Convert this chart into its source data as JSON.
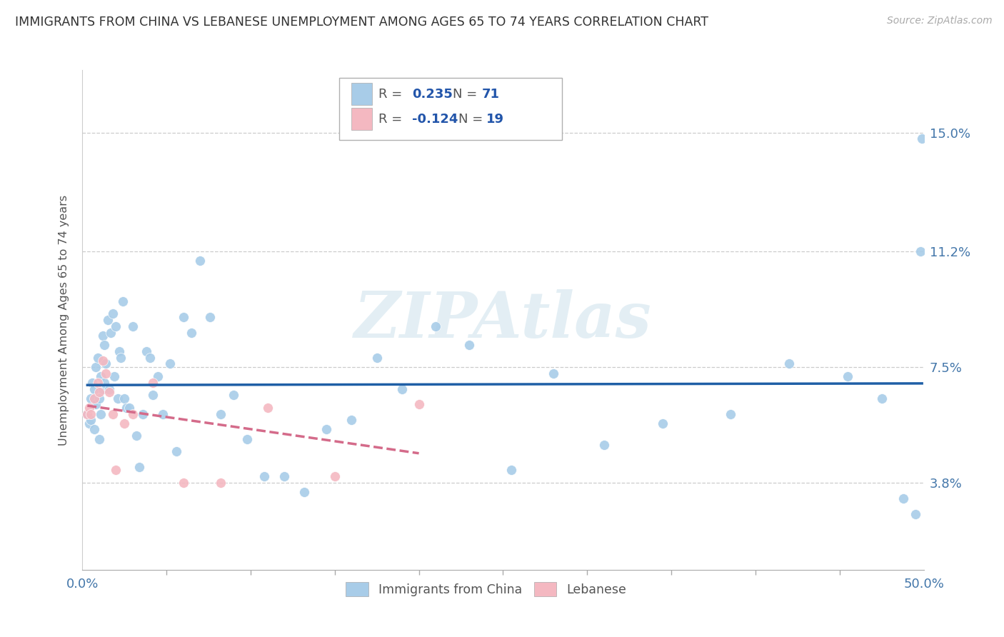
{
  "title": "IMMIGRANTS FROM CHINA VS LEBANESE UNEMPLOYMENT AMONG AGES 65 TO 74 YEARS CORRELATION CHART",
  "source": "Source: ZipAtlas.com",
  "ylabel": "Unemployment Among Ages 65 to 74 years",
  "xlim": [
    0.0,
    0.5
  ],
  "ylim": [
    0.01,
    0.17
  ],
  "xtick_positions": [
    0.0,
    0.5
  ],
  "xtick_labels": [
    "0.0%",
    "50.0%"
  ],
  "ytick_values": [
    0.038,
    0.075,
    0.112,
    0.15
  ],
  "ytick_labels": [
    "3.8%",
    "7.5%",
    "11.2%",
    "15.0%"
  ],
  "r_china": "0.235",
  "n_china": "71",
  "r_lebanese": "-0.124",
  "n_lebanese": "19",
  "legend_label_china": "Immigrants from China",
  "legend_label_lebanese": "Lebanese",
  "color_china": "#a8cce8",
  "color_lebanese": "#f4b8c1",
  "trendline_color_china": "#1f5fa6",
  "trendline_color_lebanese": "#d46b8a",
  "watermark": "ZIPAtlas",
  "china_x": [
    0.003,
    0.004,
    0.005,
    0.005,
    0.006,
    0.007,
    0.007,
    0.008,
    0.008,
    0.009,
    0.01,
    0.01,
    0.011,
    0.011,
    0.012,
    0.012,
    0.013,
    0.013,
    0.014,
    0.015,
    0.016,
    0.017,
    0.018,
    0.019,
    0.02,
    0.021,
    0.022,
    0.023,
    0.024,
    0.025,
    0.026,
    0.028,
    0.03,
    0.032,
    0.034,
    0.036,
    0.038,
    0.04,
    0.042,
    0.045,
    0.048,
    0.052,
    0.056,
    0.06,
    0.065,
    0.07,
    0.076,
    0.082,
    0.09,
    0.098,
    0.108,
    0.12,
    0.132,
    0.145,
    0.16,
    0.175,
    0.19,
    0.21,
    0.23,
    0.255,
    0.28,
    0.31,
    0.345,
    0.385,
    0.42,
    0.455,
    0.475,
    0.488,
    0.495,
    0.498,
    0.499
  ],
  "china_y": [
    0.06,
    0.057,
    0.065,
    0.058,
    0.07,
    0.068,
    0.055,
    0.075,
    0.063,
    0.078,
    0.065,
    0.052,
    0.06,
    0.072,
    0.085,
    0.068,
    0.082,
    0.07,
    0.076,
    0.09,
    0.068,
    0.086,
    0.092,
    0.072,
    0.088,
    0.065,
    0.08,
    0.078,
    0.096,
    0.065,
    0.062,
    0.062,
    0.088,
    0.053,
    0.043,
    0.06,
    0.08,
    0.078,
    0.066,
    0.072,
    0.06,
    0.076,
    0.048,
    0.091,
    0.086,
    0.109,
    0.091,
    0.06,
    0.066,
    0.052,
    0.04,
    0.04,
    0.035,
    0.055,
    0.058,
    0.078,
    0.068,
    0.088,
    0.082,
    0.042,
    0.073,
    0.05,
    0.057,
    0.06,
    0.076,
    0.072,
    0.065,
    0.033,
    0.028,
    0.112,
    0.148
  ],
  "lebanese_x": [
    0.003,
    0.004,
    0.005,
    0.007,
    0.009,
    0.01,
    0.012,
    0.014,
    0.016,
    0.018,
    0.02,
    0.025,
    0.03,
    0.042,
    0.06,
    0.082,
    0.11,
    0.15,
    0.2
  ],
  "lebanese_y": [
    0.06,
    0.062,
    0.06,
    0.065,
    0.07,
    0.067,
    0.077,
    0.073,
    0.067,
    0.06,
    0.042,
    0.057,
    0.06,
    0.07,
    0.038,
    0.038,
    0.062,
    0.04,
    0.063
  ]
}
